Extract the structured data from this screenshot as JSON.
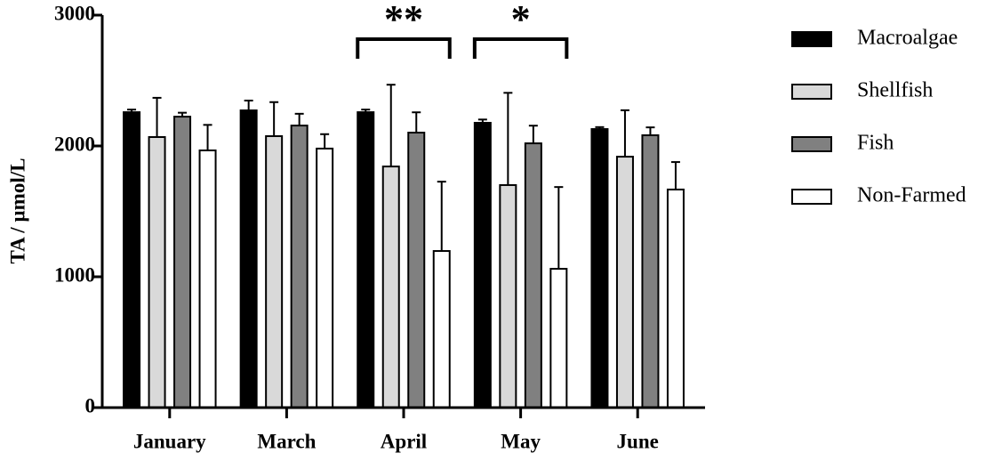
{
  "chart_data": {
    "type": "bar",
    "ylabel": "TA / µmol/L",
    "categories": [
      "January",
      "March",
      "April",
      "May",
      "June"
    ],
    "series": [
      {
        "name": "Macroalgae",
        "color": "#000000",
        "values": [
          2258,
          2272,
          2258,
          2177,
          2129
        ],
        "errors": [
          20,
          75,
          20,
          25,
          15
        ]
      },
      {
        "name": "Shellfish",
        "color": "#d9d9d9",
        "values": [
          2068,
          2075,
          1843,
          1701,
          1918
        ],
        "errors": [
          300,
          260,
          625,
          705,
          355
        ]
      },
      {
        "name": "Fish",
        "color": "#808080",
        "values": [
          2224,
          2156,
          2102,
          2020,
          2082
        ],
        "errors": [
          30,
          90,
          155,
          135,
          60
        ]
      },
      {
        "name": "Non-Farmed",
        "color": "#ffffff",
        "values": [
          1966,
          1980,
          1197,
          1061,
          1667
        ],
        "errors": [
          195,
          110,
          530,
          625,
          210
        ]
      }
    ],
    "significance": [
      null,
      null,
      "**",
      "*",
      null
    ],
    "ylim": [
      0,
      3000
    ],
    "yticks": [
      0,
      1000,
      2000,
      3000
    ],
    "grid": false
  }
}
